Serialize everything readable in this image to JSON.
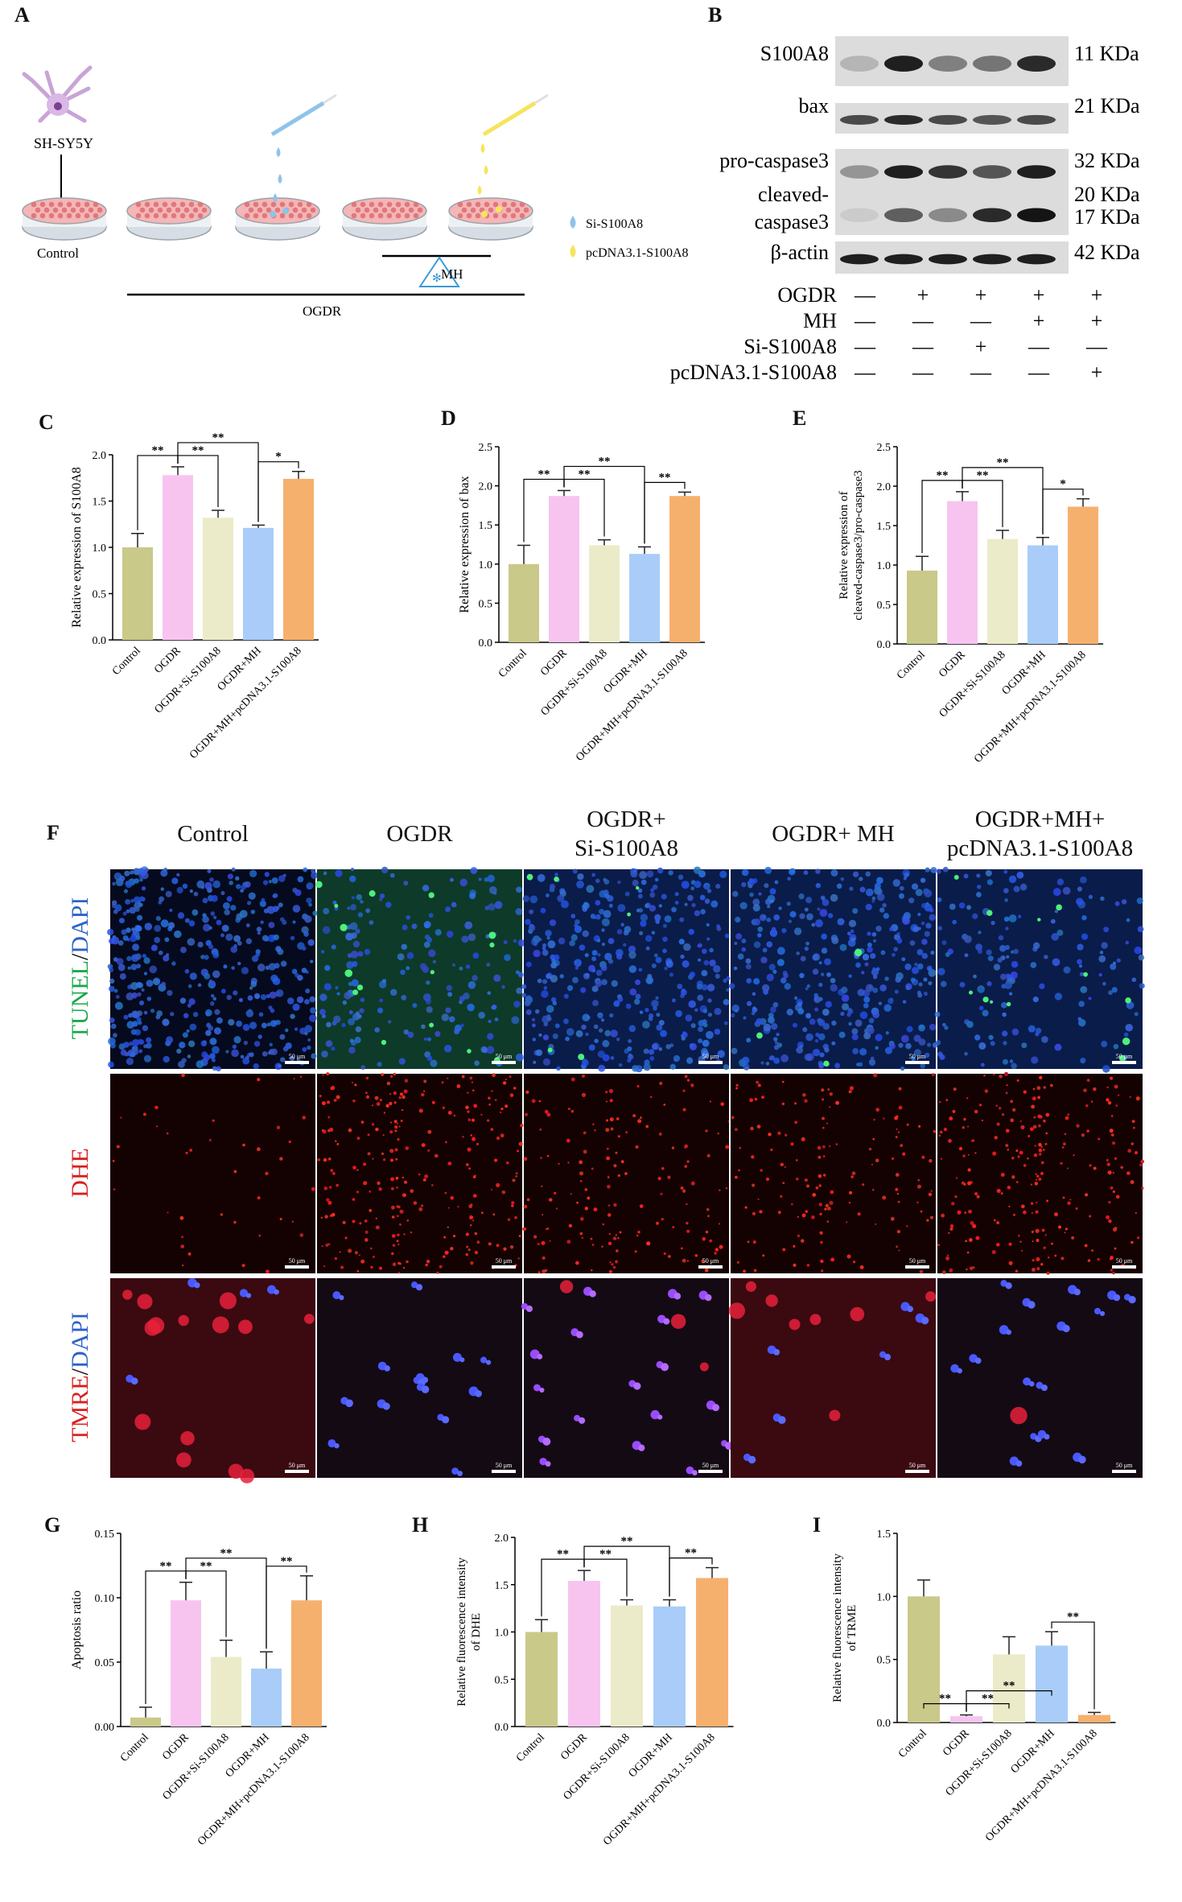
{
  "panel_letters": [
    "A",
    "B",
    "C",
    "D",
    "E",
    "F",
    "G",
    "H",
    "I"
  ],
  "panelA": {
    "cell_label": "SH-SY5Y",
    "control_label": "Control",
    "ogdr_label": "OGDR",
    "mh_label": "MH",
    "legend": [
      {
        "label": "Si-S100A8",
        "color": "#8fc3ea"
      },
      {
        "label": "pcDNA3.1-S100A8",
        "color": "#f7e45c"
      }
    ]
  },
  "panelB": {
    "bands": [
      {
        "name": "S100A8",
        "kda": "11 KDa"
      },
      {
        "name": "bax",
        "kda": "21 KDa"
      },
      {
        "name": "pro-caspase3",
        "kda": "32 KDa"
      },
      {
        "name": "cleaved-",
        "name2": "caspase3",
        "kda": "20 KDa",
        "kda2": "17 KDa"
      },
      {
        "name": "β-actin",
        "kda": "42 KDa"
      }
    ],
    "conditions": [
      {
        "label": "OGDR",
        "marks": [
          "—",
          "+",
          "+",
          "+",
          "+"
        ]
      },
      {
        "label": "MH",
        "marks": [
          "—",
          "—",
          "—",
          "+",
          "+"
        ]
      },
      {
        "label": "Si-S100A8",
        "marks": [
          "—",
          "—",
          "+",
          "—",
          "—"
        ]
      },
      {
        "label": "pcDNA3.1-S100A8",
        "marks": [
          "—",
          "—",
          "—",
          "—",
          "+"
        ]
      }
    ]
  },
  "panelF": {
    "columns": [
      "Control",
      "OGDR",
      "OGDR+\nSi-S100A8",
      "OGDR+ MH",
      "OGDR+MH+\npcDNA3.1-S100A8"
    ],
    "rows": [
      {
        "label_a": "TUNEL",
        "label_sep": "/",
        "label_b": "DAPI",
        "color_a": "#1aa84a",
        "color_b": "#2c62c8"
      },
      {
        "label_a": "DHE",
        "label_sep": "",
        "label_b": "",
        "color_a": "#d81f1f",
        "color_b": "#d81f1f"
      },
      {
        "label_a": "TMRE",
        "label_sep": "/",
        "label_b": "DAPI",
        "color_a": "#d81f1f",
        "color_b": "#2c62c8"
      }
    ],
    "scale_text": "50 μm"
  },
  "chart_data": [
    {
      "panel": "C",
      "type": "bar",
      "categories": [
        "Control",
        "OGDR",
        "OGDR+Si-S100A8",
        "OGDR+MH",
        "OGDR+MH+pcDNA3.1-S100A8"
      ],
      "values": [
        1.0,
        1.78,
        1.32,
        1.21,
        1.74
      ],
      "errors": [
        0.15,
        0.09,
        0.08,
        0.03,
        0.08
      ],
      "ylabel": "Relative expression of S100A8",
      "ylim": [
        0,
        2.0
      ],
      "ticks": [
        "0.0",
        "0.5",
        "1.0",
        "1.5",
        "2.0"
      ],
      "sig": [
        {
          "from": 0,
          "to": 1,
          "label": "**"
        },
        {
          "from": 1,
          "to": 2,
          "label": "**"
        },
        {
          "from": 1,
          "to": 3,
          "label": "**"
        },
        {
          "from": 3,
          "to": 4,
          "label": "*"
        }
      ]
    },
    {
      "panel": "D",
      "type": "bar",
      "categories": [
        "Control",
        "OGDR",
        "OGDR+Si-S100A8",
        "OGDR+MH",
        "OGDR+MH+pcDNA3.1-S100A8"
      ],
      "values": [
        1.0,
        1.87,
        1.24,
        1.13,
        1.87
      ],
      "errors": [
        0.24,
        0.07,
        0.07,
        0.09,
        0.05
      ],
      "ylabel": "Relative expression of bax",
      "ylim": [
        0,
        2.5
      ],
      "ticks": [
        "0.0",
        "0.5",
        "1.0",
        "1.5",
        "2.0",
        "2.5"
      ],
      "sig": [
        {
          "from": 0,
          "to": 1,
          "label": "**"
        },
        {
          "from": 1,
          "to": 2,
          "label": "**"
        },
        {
          "from": 1,
          "to": 3,
          "label": "**"
        },
        {
          "from": 3,
          "to": 4,
          "label": "**"
        }
      ]
    },
    {
      "panel": "E",
      "type": "bar",
      "categories": [
        "Control",
        "OGDR",
        "OGDR+Si-S100A8",
        "OGDR+MH",
        "OGDR+MH+pcDNA3.1-S100A8"
      ],
      "values": [
        0.93,
        1.81,
        1.33,
        1.25,
        1.74
      ],
      "errors": [
        0.18,
        0.12,
        0.11,
        0.1,
        0.1
      ],
      "ylabel": "Relative expression of",
      "ylabel2": "cleaved-caspase3/pro-caspase3",
      "ylim": [
        0,
        2.5
      ],
      "ticks": [
        "0.0",
        "0.5",
        "1.0",
        "1.5",
        "2.0",
        "2.5"
      ],
      "sig": [
        {
          "from": 0,
          "to": 1,
          "label": "**"
        },
        {
          "from": 1,
          "to": 2,
          "label": "**"
        },
        {
          "from": 1,
          "to": 3,
          "label": "**"
        },
        {
          "from": 3,
          "to": 4,
          "label": "*"
        }
      ]
    },
    {
      "panel": "G",
      "type": "bar",
      "categories": [
        "Control",
        "OGDR",
        "OGDR+Si-S100A8",
        "OGDR+MH",
        "OGDR+MH+pcDNA3.1-S100A8"
      ],
      "values": [
        0.007,
        0.098,
        0.054,
        0.045,
        0.098
      ],
      "errors": [
        0.008,
        0.014,
        0.013,
        0.013,
        0.019
      ],
      "ylabel": "Apoptosis ratio",
      "ylim": [
        0,
        0.15
      ],
      "ticks": [
        "0.00",
        "0.05",
        "0.10",
        "0.15"
      ],
      "sig": [
        {
          "from": 0,
          "to": 1,
          "label": "**"
        },
        {
          "from": 1,
          "to": 2,
          "label": "**"
        },
        {
          "from": 1,
          "to": 3,
          "label": "**"
        },
        {
          "from": 3,
          "to": 4,
          "label": "**"
        }
      ]
    },
    {
      "panel": "H",
      "type": "bar",
      "categories": [
        "Control",
        "OGDR",
        "OGDR+Si-S100A8",
        "OGDR+MH",
        "OGDR+MH+pcDNA3.1-S100A8"
      ],
      "values": [
        1.0,
        1.54,
        1.28,
        1.27,
        1.57
      ],
      "errors": [
        0.13,
        0.11,
        0.06,
        0.07,
        0.11
      ],
      "ylabel": "Relative fluorescence intensity",
      "ylabel2": "of DHE",
      "ylim": [
        0,
        2.0
      ],
      "ticks": [
        "0.0",
        "0.5",
        "1.0",
        "1.5",
        "2.0"
      ],
      "sig": [
        {
          "from": 0,
          "to": 1,
          "label": "**"
        },
        {
          "from": 1,
          "to": 2,
          "label": "**"
        },
        {
          "from": 1,
          "to": 3,
          "label": "**"
        },
        {
          "from": 3,
          "to": 4,
          "label": "**"
        }
      ]
    },
    {
      "panel": "I",
      "type": "bar",
      "categories": [
        "Control",
        "OGDR",
        "OGDR+Si-S100A8",
        "OGDR+MH",
        "OGDR+MH+pcDNA3.1-S100A8"
      ],
      "values": [
        1.0,
        0.05,
        0.54,
        0.61,
        0.06
      ],
      "errors": [
        0.13,
        0.01,
        0.14,
        0.11,
        0.02
      ],
      "ylabel": "Relative fluorescence intensity",
      "ylabel2": "of TRME",
      "ylim": [
        0,
        1.5
      ],
      "ticks": [
        "0.0",
        "0.5",
        "1.0",
        "1.5"
      ],
      "sig": [
        {
          "from": 0,
          "to": 1,
          "label": "**"
        },
        {
          "from": 1,
          "to": 2,
          "label": "**"
        },
        {
          "from": 1,
          "to": 3,
          "label": "**"
        },
        {
          "from": 3,
          "to": 4,
          "label": "**"
        }
      ]
    }
  ],
  "colors": {
    "bars": [
      "#c9c98a",
      "#f7c4ef",
      "#ecebc9",
      "#a9cdf8",
      "#f6b06e"
    ],
    "bar_edge": "#7f7f7f"
  }
}
